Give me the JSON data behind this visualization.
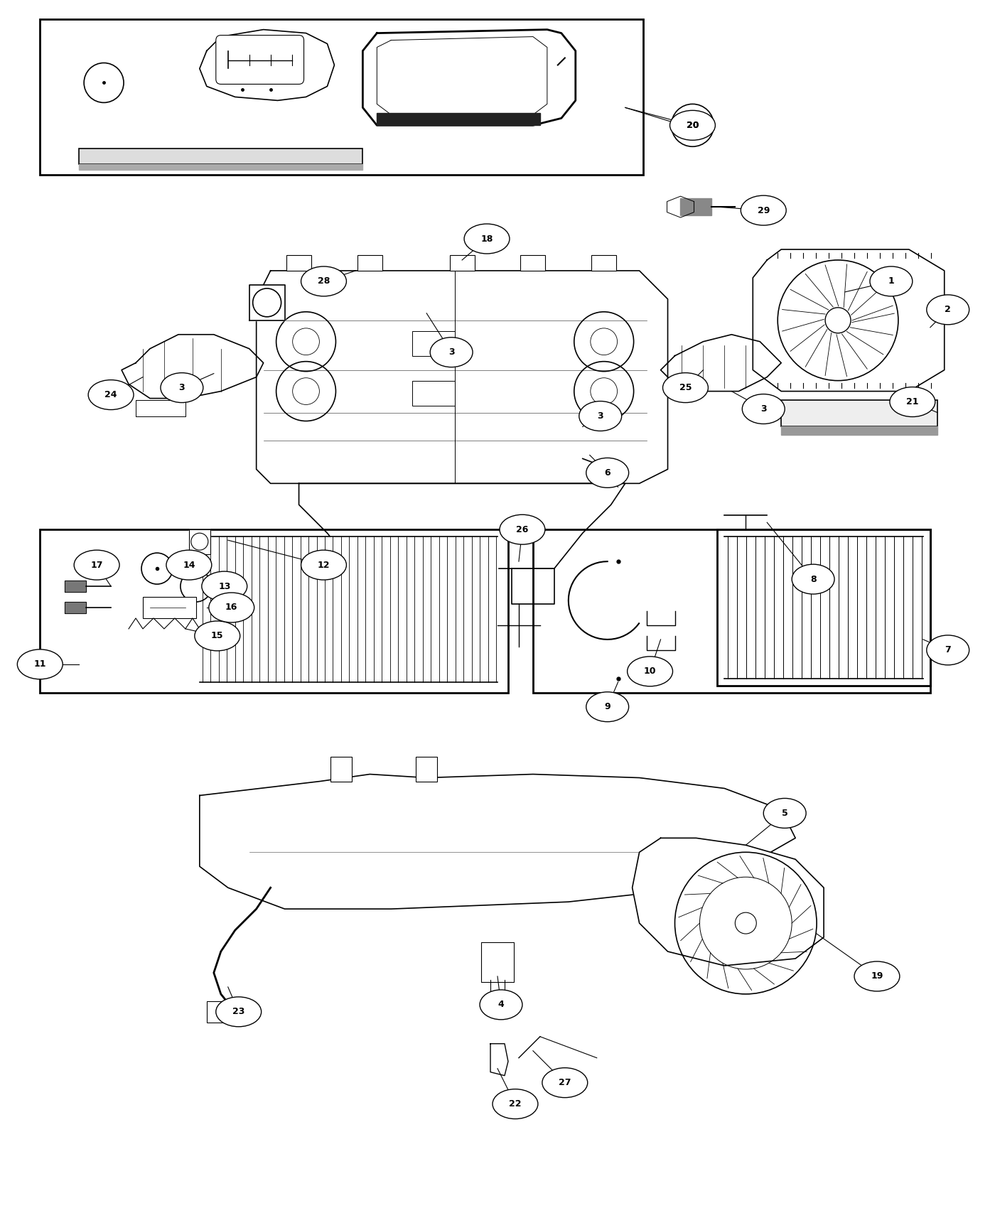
{
  "bg_color": "#ffffff",
  "line_color": "#000000",
  "fig_width": 14.0,
  "fig_height": 17.0,
  "dpi": 100,
  "labels": [
    [
      "1",
      12.55,
      13.05
    ],
    [
      "2",
      13.35,
      12.65
    ],
    [
      "3",
      2.55,
      11.55
    ],
    [
      "3",
      6.35,
      12.05
    ],
    [
      "3",
      8.45,
      11.15
    ],
    [
      "3",
      10.75,
      11.25
    ],
    [
      "4",
      7.05,
      2.85
    ],
    [
      "5",
      11.05,
      5.55
    ],
    [
      "6",
      8.55,
      10.35
    ],
    [
      "7",
      13.35,
      7.85
    ],
    [
      "8",
      11.45,
      8.85
    ],
    [
      "9",
      8.55,
      7.05
    ],
    [
      "10",
      9.15,
      7.55
    ],
    [
      "11",
      0.55,
      7.65
    ],
    [
      "12",
      4.55,
      9.05
    ],
    [
      "13",
      3.15,
      8.75
    ],
    [
      "14",
      2.65,
      9.05
    ],
    [
      "15",
      3.05,
      8.05
    ],
    [
      "16",
      3.25,
      8.45
    ],
    [
      "17",
      1.35,
      9.05
    ],
    [
      "18",
      6.85,
      13.65
    ],
    [
      "19",
      12.35,
      3.25
    ],
    [
      "20",
      9.75,
      15.25
    ],
    [
      "21",
      12.85,
      11.35
    ],
    [
      "22",
      7.25,
      1.45
    ],
    [
      "23",
      3.35,
      2.75
    ],
    [
      "24",
      1.55,
      11.45
    ],
    [
      "25",
      9.65,
      11.55
    ],
    [
      "26",
      7.35,
      9.55
    ],
    [
      "27",
      7.95,
      1.75
    ],
    [
      "28",
      4.55,
      13.05
    ],
    [
      "29",
      10.75,
      14.05
    ]
  ]
}
